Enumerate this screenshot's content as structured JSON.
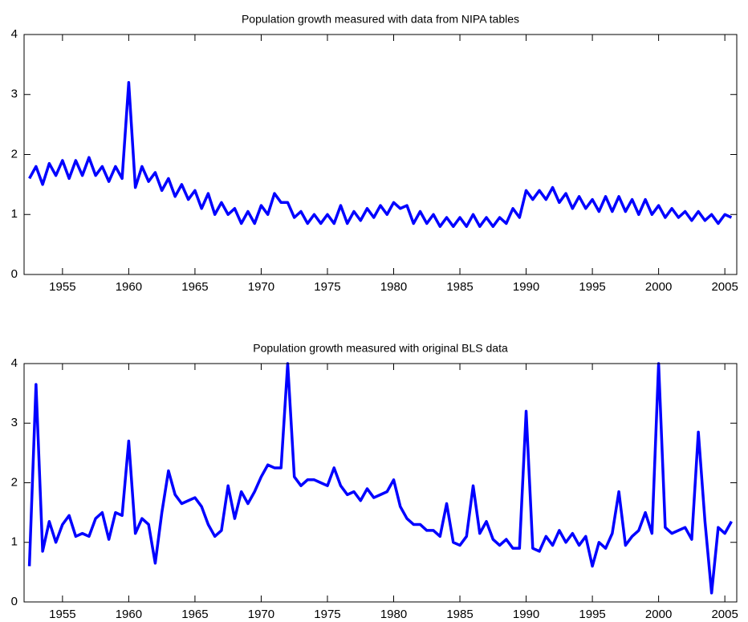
{
  "chart_data": [
    {
      "type": "line",
      "title": "Population growth measured with data from NIPA tables",
      "color": "#0000ff",
      "x": [
        1952.5,
        1953,
        1953.5,
        1954,
        1954.5,
        1955,
        1955.5,
        1956,
        1956.5,
        1957,
        1957.5,
        1958,
        1958.5,
        1959,
        1959.5,
        1960,
        1960.5,
        1961,
        1961.5,
        1962,
        1962.5,
        1963,
        1963.5,
        1964,
        1964.5,
        1965,
        1965.5,
        1966,
        1966.5,
        1967,
        1967.5,
        1968,
        1968.5,
        1969,
        1969.5,
        1970,
        1970.5,
        1971,
        1971.5,
        1972,
        1972.5,
        1973,
        1973.5,
        1974,
        1974.5,
        1975,
        1975.5,
        1976,
        1976.5,
        1977,
        1977.5,
        1978,
        1978.5,
        1979,
        1979.5,
        1980,
        1980.5,
        1981,
        1981.5,
        1982,
        1982.5,
        1983,
        1983.5,
        1984,
        1984.5,
        1985,
        1985.5,
        1986,
        1986.5,
        1987,
        1987.5,
        1988,
        1988.5,
        1989,
        1989.5,
        1990,
        1990.5,
        1991,
        1991.5,
        1992,
        1992.5,
        1993,
        1993.5,
        1994,
        1994.5,
        1995,
        1995.5,
        1996,
        1996.5,
        1997,
        1997.5,
        1998,
        1998.5,
        1999,
        1999.5,
        2000,
        2000.5,
        2001,
        2001.5,
        2002,
        2002.5,
        2003,
        2003.5,
        2004,
        2004.5,
        2005,
        2005.5
      ],
      "values": [
        1.6,
        1.8,
        1.5,
        1.85,
        1.65,
        1.9,
        1.6,
        1.9,
        1.65,
        1.95,
        1.65,
        1.8,
        1.55,
        1.8,
        1.6,
        3.2,
        1.45,
        1.8,
        1.55,
        1.7,
        1.4,
        1.6,
        1.3,
        1.5,
        1.25,
        1.4,
        1.1,
        1.35,
        1.0,
        1.2,
        1.0,
        1.1,
        0.85,
        1.05,
        0.85,
        1.15,
        1.0,
        1.35,
        1.2,
        1.2,
        0.95,
        1.05,
        0.85,
        1.0,
        0.85,
        1.0,
        0.85,
        1.15,
        0.85,
        1.05,
        0.9,
        1.1,
        0.95,
        1.15,
        1.0,
        1.2,
        1.1,
        1.15,
        0.85,
        1.05,
        0.85,
        1.0,
        0.8,
        0.95,
        0.8,
        0.95,
        0.8,
        1.0,
        0.8,
        0.95,
        0.8,
        0.95,
        0.85,
        1.1,
        0.95,
        1.4,
        1.25,
        1.4,
        1.25,
        1.45,
        1.2,
        1.35,
        1.1,
        1.3,
        1.1,
        1.25,
        1.05,
        1.3,
        1.05,
        1.3,
        1.05,
        1.25,
        1.0,
        1.25,
        1.0,
        1.15,
        0.95,
        1.1,
        0.95,
        1.05,
        0.9,
        1.05,
        0.9,
        1.0,
        0.85,
        1.0,
        0.95
      ],
      "xlim": [
        1952.1,
        2005.9
      ],
      "ylim": [
        0,
        4
      ],
      "xticks": [
        1955,
        1960,
        1965,
        1970,
        1975,
        1980,
        1985,
        1990,
        1995,
        2000,
        2005
      ],
      "yticks": [
        0,
        1,
        2,
        3,
        4
      ]
    },
    {
      "type": "line",
      "title": "Population growth measured with original BLS data",
      "color": "#0000ff",
      "x": [
        1952.5,
        1953,
        1953.5,
        1954,
        1954.5,
        1955,
        1955.5,
        1956,
        1956.5,
        1957,
        1957.5,
        1958,
        1958.5,
        1959,
        1959.5,
        1960,
        1960.5,
        1961,
        1961.5,
        1962,
        1962.5,
        1963,
        1963.5,
        1964,
        1964.5,
        1965,
        1965.5,
        1966,
        1966.5,
        1967,
        1967.5,
        1968,
        1968.5,
        1969,
        1969.5,
        1970,
        1970.5,
        1971,
        1971.5,
        1972,
        1972.5,
        1973,
        1973.5,
        1974,
        1974.5,
        1975,
        1975.5,
        1976,
        1976.5,
        1977,
        1977.5,
        1978,
        1978.5,
        1979,
        1979.5,
        1980,
        1980.5,
        1981,
        1981.5,
        1982,
        1982.5,
        1983,
        1983.5,
        1984,
        1984.5,
        1985,
        1985.5,
        1986,
        1986.5,
        1987,
        1987.5,
        1988,
        1988.5,
        1989,
        1989.5,
        1990,
        1990.5,
        1991,
        1991.5,
        1992,
        1992.5,
        1993,
        1993.5,
        1994,
        1994.5,
        1995,
        1995.5,
        1996,
        1996.5,
        1997,
        1997.5,
        1998,
        1998.5,
        1999,
        1999.5,
        2000,
        2000.5,
        2001,
        2001.5,
        2002,
        2002.5,
        2003,
        2003.5,
        2004,
        2004.5,
        2005,
        2005.5
      ],
      "values": [
        0.6,
        3.65,
        0.85,
        1.35,
        1.0,
        1.3,
        1.45,
        1.1,
        1.15,
        1.1,
        1.4,
        1.5,
        1.05,
        1.5,
        1.45,
        2.7,
        1.15,
        1.4,
        1.3,
        0.65,
        1.5,
        2.2,
        1.8,
        1.65,
        1.7,
        1.75,
        1.6,
        1.3,
        1.1,
        1.2,
        1.95,
        1.4,
        1.85,
        1.65,
        1.85,
        2.1,
        2.3,
        2.25,
        2.25,
        4.0,
        2.1,
        1.95,
        2.05,
        2.05,
        2.0,
        1.95,
        2.25,
        1.95,
        1.8,
        1.85,
        1.7,
        1.9,
        1.75,
        1.8,
        1.85,
        2.05,
        1.6,
        1.4,
        1.3,
        1.3,
        1.2,
        1.2,
        1.1,
        1.65,
        1.0,
        0.95,
        1.1,
        1.95,
        1.15,
        1.35,
        1.05,
        0.95,
        1.05,
        0.9,
        0.9,
        3.2,
        0.9,
        0.85,
        1.1,
        0.95,
        1.2,
        1.0,
        1.15,
        0.95,
        1.1,
        0.6,
        1.0,
        0.9,
        1.15,
        1.85,
        0.95,
        1.1,
        1.2,
        1.5,
        1.15,
        4.0,
        1.25,
        1.15,
        1.2,
        1.25,
        1.05,
        2.85,
        1.35,
        0.15,
        1.25,
        1.15,
        1.35
      ],
      "xlim": [
        1952.1,
        2005.9
      ],
      "ylim": [
        0,
        4
      ],
      "xticks": [
        1955,
        1960,
        1965,
        1970,
        1975,
        1980,
        1985,
        1990,
        1995,
        2000,
        2005
      ],
      "yticks": [
        0,
        1,
        2,
        3,
        4
      ]
    }
  ]
}
